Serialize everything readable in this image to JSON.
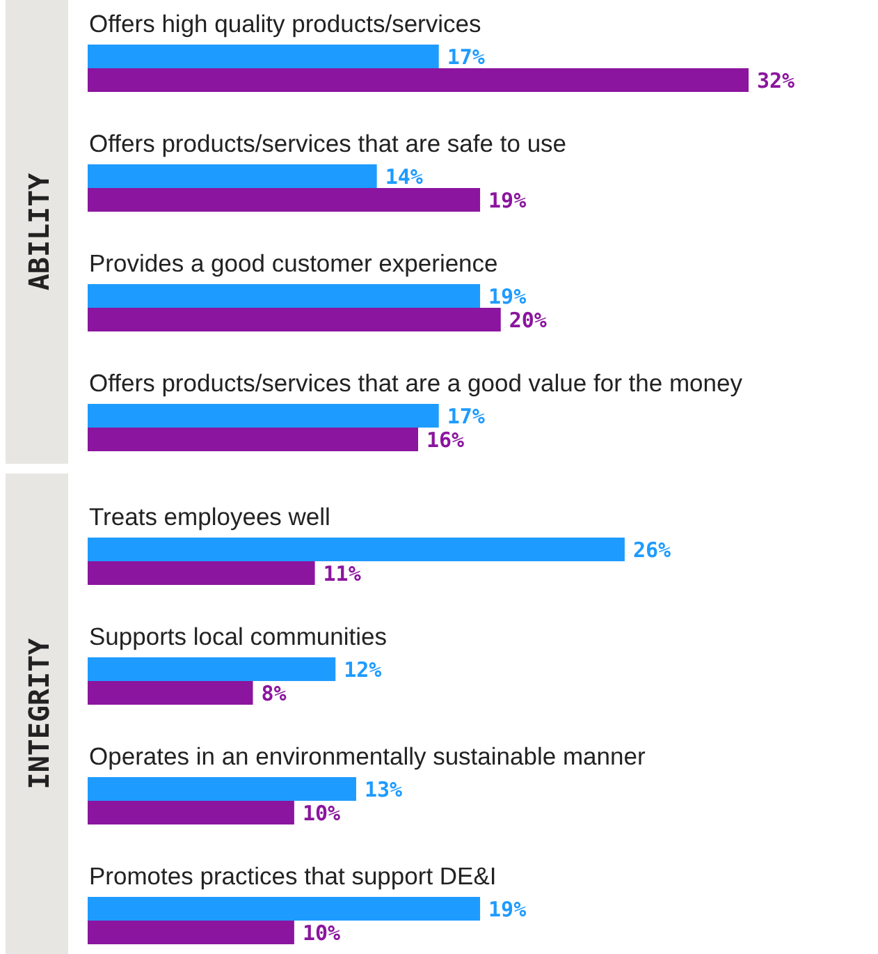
{
  "chart_data": {
    "type": "bar",
    "orientation": "horizontal",
    "categories": [
      "Offers high quality products/services",
      "Offers products/services that are safe to use",
      "Provides a good customer experience",
      "Offers products/services that are a good value for the money",
      "Treats employees well",
      "Supports local communities",
      "Operates in an environmentally sustainable manner",
      "Promotes practices that support DE&I"
    ],
    "series": [
      {
        "color": "#1e9bff",
        "values": [
          17,
          14,
          19,
          17,
          26,
          12,
          13,
          19
        ],
        "value_labels": [
          "17%",
          "14%",
          "19%",
          "17%",
          "26%",
          "12%",
          "13%",
          "19%"
        ]
      },
      {
        "color": "#8b159e",
        "values": [
          32,
          19,
          20,
          16,
          11,
          8,
          10,
          10
        ],
        "value_labels": [
          "32%",
          "19%",
          "20%",
          "16%",
          "11%",
          "8%",
          "10%",
          "10%"
        ]
      }
    ],
    "annotations": [
      "ABILITY",
      "INTEGRITY"
    ]
  }
}
